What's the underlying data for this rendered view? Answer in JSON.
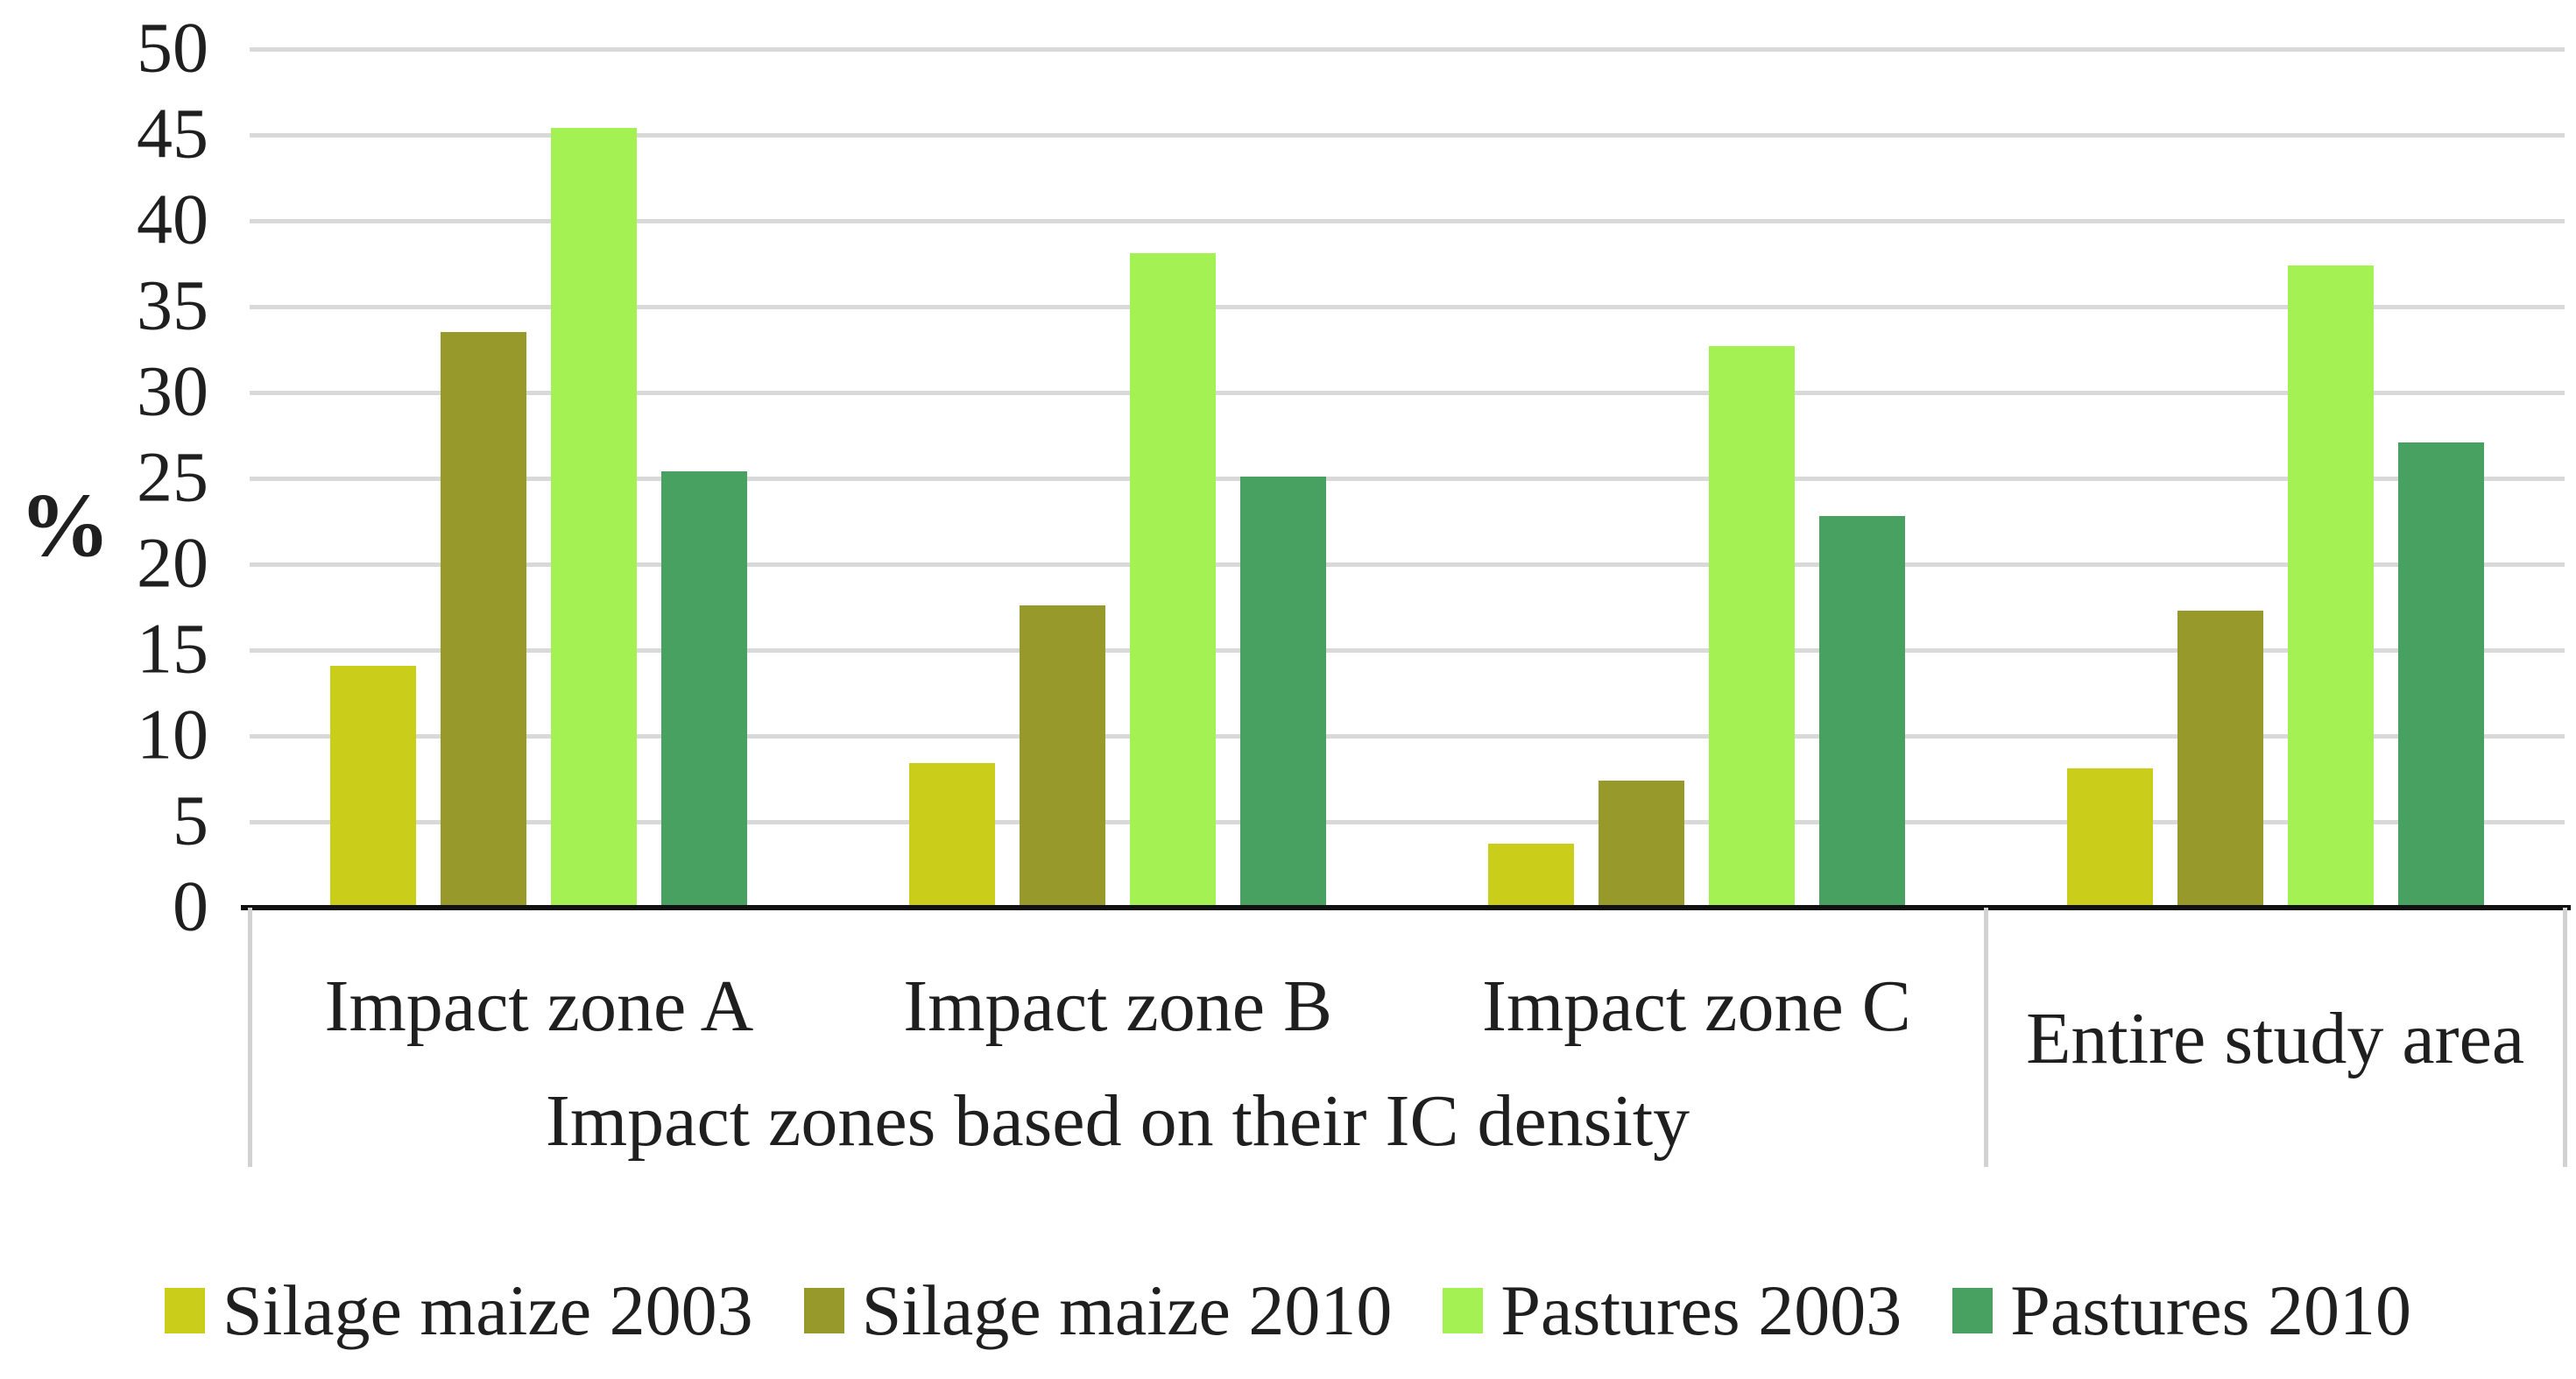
{
  "chart_data": {
    "type": "bar",
    "title": "",
    "ylabel": "%",
    "xlabel": "Impact zones based on their IC density",
    "xlabel_applies_to": [
      "Impact zone A",
      "Impact zone B",
      "Impact zone C"
    ],
    "categories": [
      "Impact zone A",
      "Impact zone B",
      "Impact zone C",
      "Entire study area"
    ],
    "series": [
      {
        "name": "Silage maize 2003",
        "color": "#cbcd1b",
        "values": [
          14.1,
          8.4,
          3.7,
          8.1
        ]
      },
      {
        "name": "Silage maize 2010",
        "color": "#97992a",
        "values": [
          33.5,
          17.6,
          7.4,
          17.3
        ]
      },
      {
        "name": "Pastures 2003",
        "color": "#a4f153",
        "values": [
          45.4,
          38.1,
          32.7,
          37.4
        ]
      },
      {
        "name": "Pastures 2010",
        "color": "#48a061",
        "values": [
          25.4,
          25.1,
          22.8,
          27.1
        ]
      }
    ],
    "ylim": [
      0,
      50
    ],
    "yticks": [
      0,
      5,
      10,
      15,
      20,
      25,
      30,
      35,
      40,
      45,
      50
    ],
    "grid": true,
    "legend_position": "bottom",
    "separator_after_category_index": 2,
    "colors": {
      "gridline": "#d9d9d9",
      "axis": "#111111",
      "text": "#1f1f1f",
      "divider": "#d2d2d2"
    }
  }
}
